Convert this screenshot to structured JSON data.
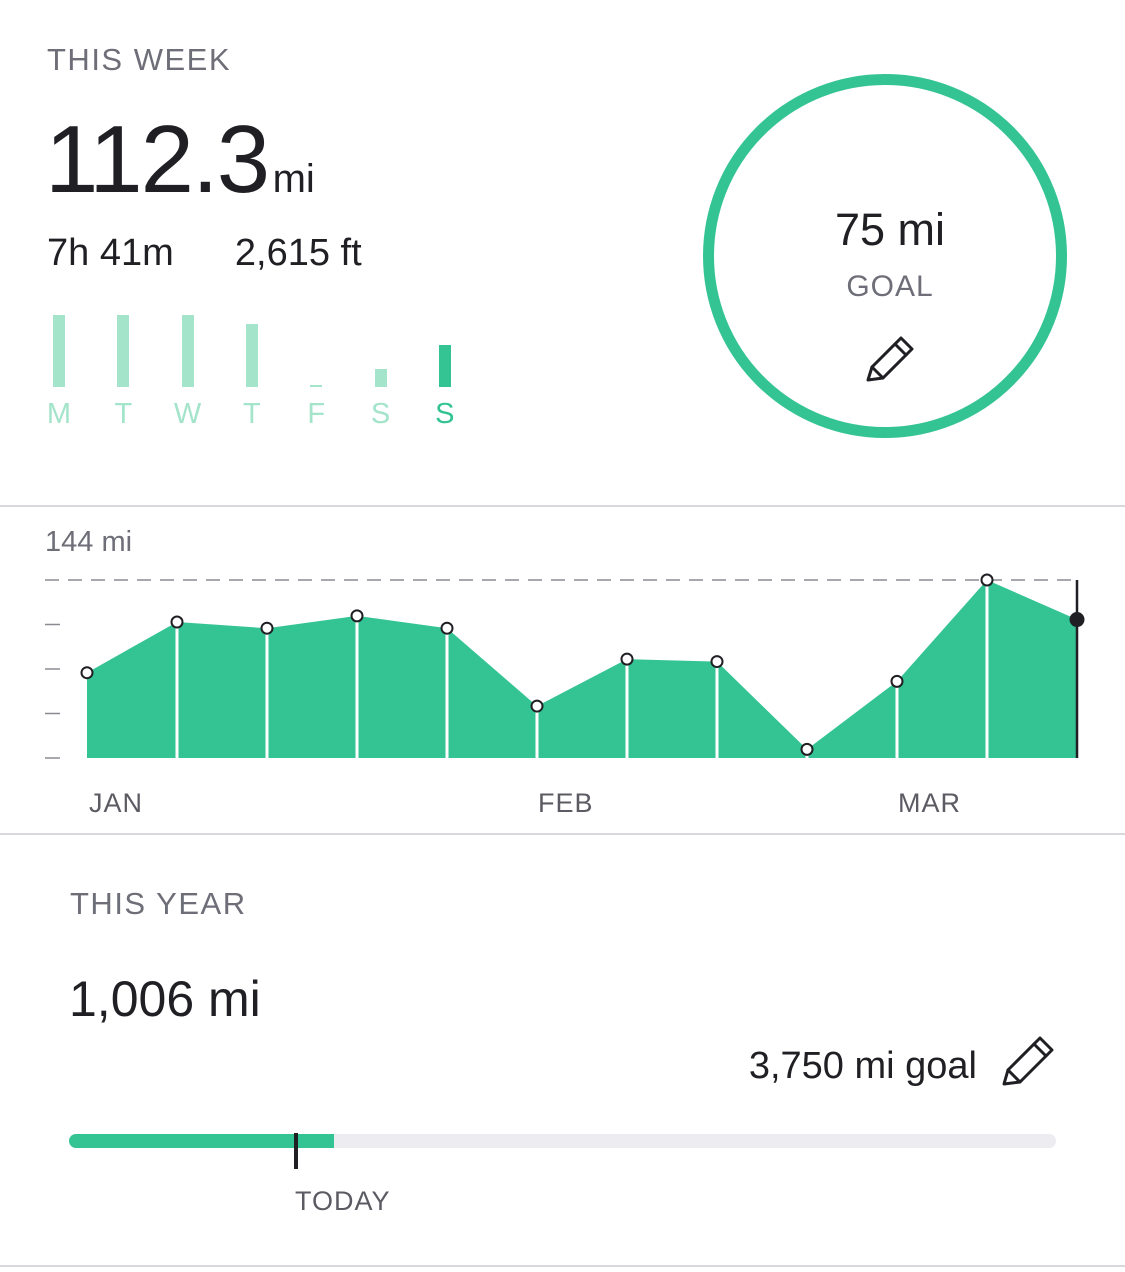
{
  "colors": {
    "accent": "#34c494",
    "accent_light": "#a3e4cb",
    "text": "#1f1f24",
    "muted": "#6e6e78",
    "divider": "#d7d7dc",
    "track": "#ececf1"
  },
  "week": {
    "section_label": "THIS WEEK",
    "distance_value": "112.3",
    "distance_unit": "mi",
    "duration": "7h 41m",
    "elevation": "2,615 ft",
    "days": [
      {
        "label": "M",
        "level": 1.0,
        "active": false
      },
      {
        "label": "T",
        "level": 1.0,
        "active": false
      },
      {
        "label": "W",
        "level": 1.0,
        "active": false
      },
      {
        "label": "T",
        "level": 0.87,
        "active": false
      },
      {
        "label": "F",
        "level": 0.03,
        "active": false
      },
      {
        "label": "S",
        "level": 0.25,
        "active": false
      },
      {
        "label": "S",
        "level": 0.58,
        "active": true
      }
    ],
    "goal": {
      "value": "75 mi",
      "label": "GOAL",
      "edit_icon": "pencil-icon"
    }
  },
  "chart_data": {
    "type": "area",
    "max_label": "144 mi",
    "ylim": [
      0,
      144
    ],
    "month_labels": [
      "JAN",
      "FEB",
      "MAR"
    ],
    "points": [
      69,
      110,
      105,
      115,
      105,
      42,
      80,
      78,
      7,
      62,
      144,
      112
    ],
    "current_index": 11,
    "max_line": "dashed"
  },
  "year": {
    "section_label": "THIS YEAR",
    "distance": "1,006 mi",
    "goal_text": "3,750 mi goal",
    "edit_icon": "pencil-icon",
    "progress": 0.268,
    "today_position": 0.228,
    "today_label": "TODAY"
  }
}
